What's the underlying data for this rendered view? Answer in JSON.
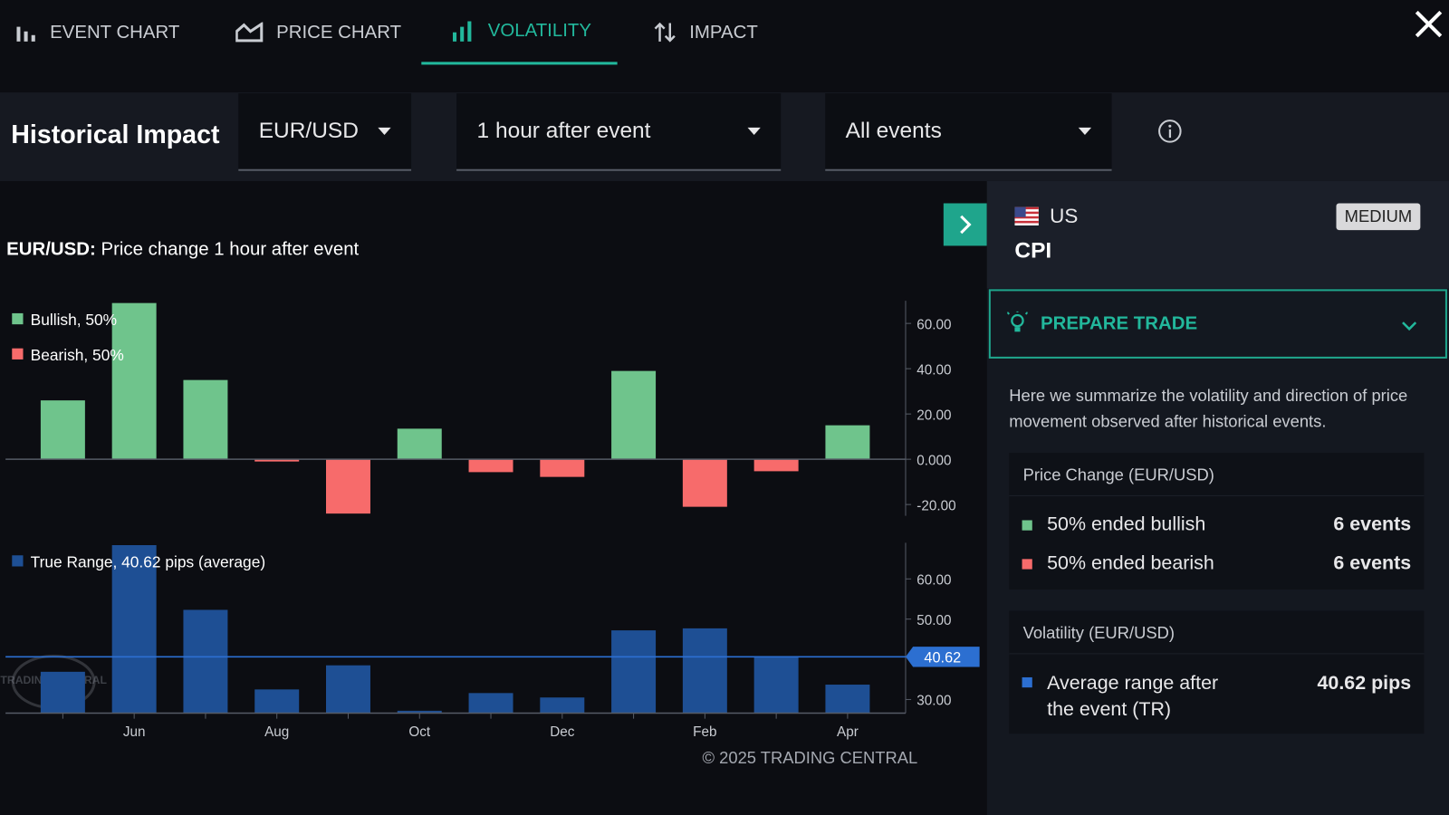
{
  "tabs": [
    {
      "label": "EVENT CHART"
    },
    {
      "label": "PRICE CHART"
    },
    {
      "label": "VOLATILITY",
      "active": true
    },
    {
      "label": "IMPACT"
    }
  ],
  "toolbar": {
    "title": "Historical Impact",
    "dropdowns": [
      "EUR/USD",
      "1 hour after event",
      "All events"
    ]
  },
  "chart_data": [
    {
      "type": "bar",
      "title_prefix": "EUR/USD:",
      "title": "Price change 1 hour after event",
      "legend": [
        {
          "name": "Bullish, 50%",
          "color": "#6fc48c"
        },
        {
          "name": "Bearish, 50%",
          "color": "#f76b6b"
        }
      ],
      "values": [
        26,
        69,
        35,
        -1,
        -24,
        13.5,
        -5.7,
        -7.8,
        39,
        -21,
        -5.3,
        15
      ],
      "ylim": [
        -25,
        70
      ],
      "yticks": [
        {
          "value": 60,
          "label": "60.00"
        },
        {
          "value": 40,
          "label": "40.00"
        },
        {
          "value": 20,
          "label": "20.00"
        },
        {
          "value": 0,
          "label": "0.000"
        },
        {
          "value": -20,
          "label": "-20.00"
        }
      ]
    },
    {
      "type": "bar",
      "legend": [
        {
          "name": "True Range, 40.62 pips (average)",
          "color": "#1e4f94"
        }
      ],
      "categories": [
        null,
        "Jun",
        null,
        "Aug",
        null,
        "Oct",
        null,
        "Dec",
        null,
        "Feb",
        null,
        "Apr"
      ],
      "values": [
        36.9,
        68.4,
        52.3,
        32.5,
        38.5,
        27.2,
        31.6,
        30.5,
        47.2,
        47.7,
        40.6,
        33.7
      ],
      "average": {
        "value": 40.62,
        "label": "40.62",
        "color": "#2c6fd1"
      },
      "ylim": [
        26.6,
        69
      ],
      "yticks": [
        {
          "value": 60,
          "label": "60.00"
        },
        {
          "value": 50,
          "label": "50.00"
        },
        {
          "value": 30,
          "label": "30.00"
        }
      ],
      "watermark": "TRADING CENTRAL"
    }
  ],
  "copyright": "© 2025 TRADING CENTRAL",
  "panel": {
    "country": "US",
    "impact": "MEDIUM",
    "event": "CPI",
    "prepare": "PREPARE TRADE",
    "description": "Here we summarize the volatility and direction of price movement observed after historical events.",
    "price_change": {
      "title": "Price Change (EUR/USD)",
      "rows": [
        {
          "label": "50% ended bullish",
          "count": "6 events",
          "color": "#6fc48c"
        },
        {
          "label": "50% ended bearish",
          "count": "6 events",
          "color": "#f76b6b"
        }
      ]
    },
    "volatility": {
      "title": "Volatility (EUR/USD)",
      "label": "Average range after the event (TR)",
      "value": "40.62 pips",
      "color": "#2c6fd1"
    }
  }
}
